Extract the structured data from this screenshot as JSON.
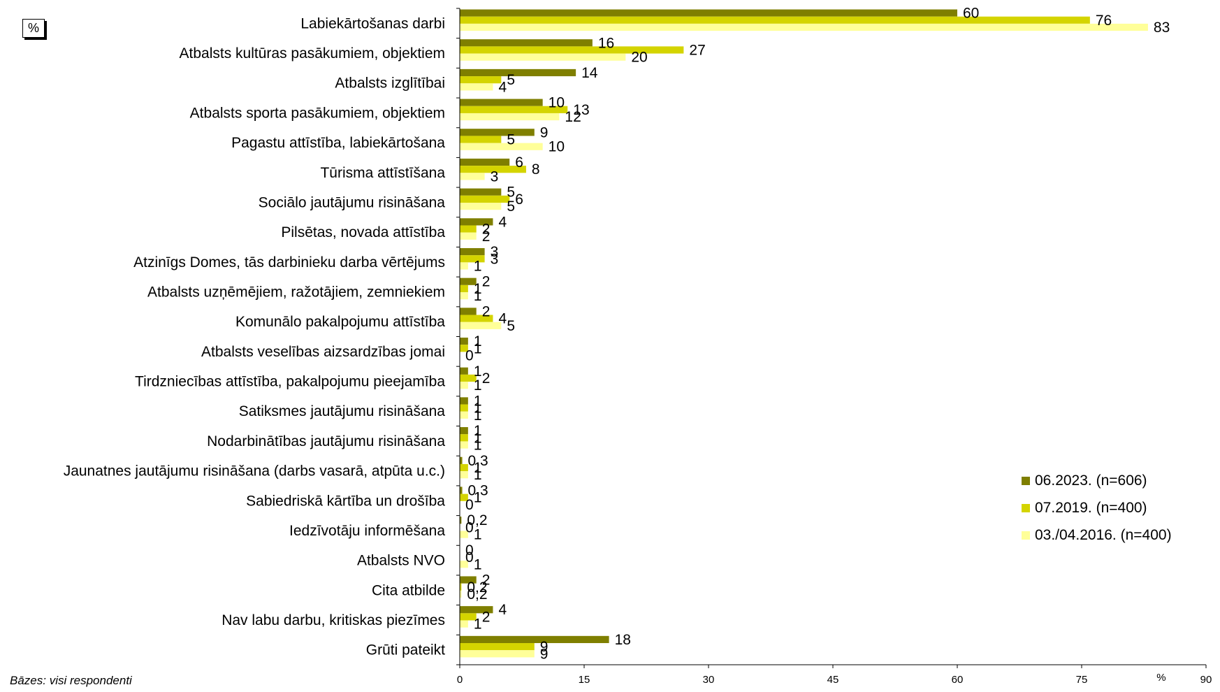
{
  "unit_label": "%",
  "footnote": "Bāzes: visi respondenti",
  "colors": {
    "series": [
      "#7f7f00",
      "#d4d400",
      "#ffff99"
    ],
    "axis": "#000000"
  },
  "chart_data": {
    "type": "bar",
    "orientation": "horizontal",
    "title": "",
    "xlabel": "%",
    "ylabel": "",
    "xlim": [
      0,
      90
    ],
    "xticks": [
      0,
      15,
      30,
      45,
      60,
      75,
      90
    ],
    "grid": false,
    "legend_position": "right",
    "categories": [
      "Labiekārtošanas darbi",
      "Atbalsts kultūras pasākumiem, objektiem",
      "Atbalsts izglītībai",
      "Atbalsts sporta pasākumiem, objektiem",
      "Pagastu attīstība, labiekārtošana",
      "Tūrisma attīstīšana",
      "Sociālo jautājumu risināšana",
      "Pilsētas, novada attīstība",
      "Atzinīgs Domes, tās darbinieku darba vērtējums",
      "Atbalsts uzņēmējiem, ražotājiem, zemniekiem",
      "Komunālo pakalpojumu attīstība",
      "Atbalsts veselības aizsardzības jomai",
      "Tirdzniecības attīstība, pakalpojumu pieejamība",
      "Satiksmes jautājumu risināšana",
      "Nodarbinātības jautājumu risināšana",
      "Jaunatnes jautājumu risināšana (darbs vasarā, atpūta u.c.)",
      "Sabiedriskā kārtība un drošība",
      "Iedzīvotāju informēšana",
      "Atbalsts NVO",
      "Cita atbilde",
      "Nav labu darbu, kritiskas piezīmes",
      "Grūti pateikt"
    ],
    "series": [
      {
        "name": "06.2023. (n=606)",
        "values": [
          60,
          16,
          14,
          10,
          9,
          6,
          5,
          4,
          3,
          2,
          2,
          1,
          1,
          1,
          1,
          0.3,
          0.3,
          0.2,
          0,
          2,
          4,
          18
        ],
        "labels": [
          "60",
          "16",
          "14",
          "10",
          "9",
          "6",
          "5",
          "4",
          "3",
          "2",
          "2",
          "1",
          "1",
          "1",
          "1",
          "0,3",
          "0,3",
          "0,2",
          "0",
          "2",
          "4",
          "18"
        ]
      },
      {
        "name": "07.2019. (n=400)",
        "values": [
          76,
          27,
          5,
          13,
          5,
          8,
          6,
          2,
          3,
          1,
          4,
          1,
          2,
          1,
          1,
          1,
          1,
          0,
          0,
          0.2,
          2,
          9
        ],
        "labels": [
          "76",
          "27",
          "5",
          "13",
          "5",
          "8",
          "6",
          "2",
          "3",
          "1",
          "4",
          "1",
          "2",
          "1",
          "1",
          "1",
          "1",
          "0",
          "0",
          "0,2",
          "2",
          "9"
        ]
      },
      {
        "name": "03./04.2016. (n=400)",
        "values": [
          83,
          20,
          4,
          12,
          10,
          3,
          5,
          2,
          1,
          1,
          5,
          0,
          1,
          1,
          1,
          1,
          0,
          1,
          1,
          0.2,
          1,
          9
        ],
        "labels": [
          "83",
          "20",
          "4",
          "12",
          "10",
          "3",
          "5",
          "2",
          "1",
          "1",
          "5",
          "0",
          "1",
          "1",
          "1",
          "1",
          "0",
          "1",
          "1",
          "0,2",
          "1",
          "9"
        ]
      }
    ]
  }
}
